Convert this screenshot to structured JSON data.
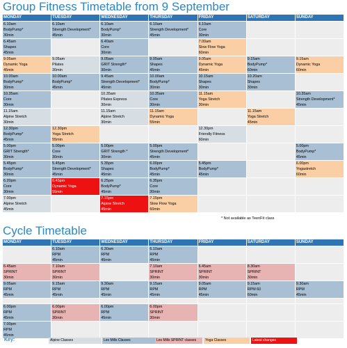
{
  "colors": {
    "alpine": "#d6dde3",
    "lesmills": "#a9bfd3",
    "sprint": "#e8b3b3",
    "yoga": "#fbcfa6",
    "latest": "#ee1111",
    "empty": "#ededed",
    "header": "#2f75b5"
  },
  "gf": {
    "title": "Group Fitness Timetable from 9 September",
    "days": [
      "MONDAY",
      "TUESDAY",
      "WEDNESDAY",
      "THURSDAY",
      "FRIDAY",
      "SATURDAY",
      "SUNDAY"
    ],
    "rows": [
      [
        {
          "t": "6.10am",
          "n": "BodyPump*",
          "d": "30min",
          "c": "lesmills"
        },
        {
          "t": "6.10am",
          "n": "Strength Development*",
          "d": "45min",
          "c": "lesmills"
        },
        {
          "t": "6.10am",
          "n": "BodyPump*",
          "d": "30min",
          "c": "lesmills"
        },
        {
          "t": "6.10am",
          "n": "Strength Development*",
          "d": "45min",
          "c": "lesmills"
        },
        {
          "t": "6.10am",
          "n": "Core",
          "d": "30min",
          "c": "lesmills"
        },
        {
          "c": "empty"
        },
        {
          "c": "empty"
        }
      ],
      [
        {
          "t": "6.45am",
          "n": "Shapes",
          "d": "45min",
          "c": "lesmills"
        },
        {
          "c": "empty"
        },
        {
          "t": "6.40am",
          "n": "Core",
          "d": "30min",
          "c": "lesmills"
        },
        {
          "c": "empty"
        },
        {
          "t": "7.00am",
          "n": "Slow Flow Yoga",
          "d": "60min",
          "c": "yoga"
        },
        {
          "c": "empty"
        },
        {
          "c": "empty"
        }
      ],
      [
        {
          "t": "9.05am",
          "n": "Dynamic Yoga",
          "d": "45min",
          "c": "yoga"
        },
        {
          "t": "9.05am",
          "n": "Pilates",
          "d": "30min",
          "c": "alpine"
        },
        {
          "t": "9.05am",
          "n": "GRIT Strength*",
          "d": "30min",
          "c": "lesmills"
        },
        {
          "t": "9.05am",
          "n": "Shapes",
          "d": "45min",
          "c": "lesmills"
        },
        {
          "t": "9.05am",
          "n": "Dynamic Yoga",
          "d": "45min",
          "c": "yoga"
        },
        {
          "t": "9.15am",
          "n": "BodyPump*",
          "d": "60min",
          "c": "lesmills"
        },
        {
          "t": "9.15am",
          "n": "Dynamic Yoga",
          "d": "60min",
          "c": "yoga"
        }
      ],
      [
        {
          "t": "10.00am",
          "n": "BodyPump*",
          "d": "30min",
          "c": "lesmills"
        },
        {
          "t": "10.00am",
          "n": "BodyPump*",
          "d": "45min",
          "c": "lesmills"
        },
        {
          "t": "9.45am",
          "n": "Strength Development*",
          "d": "45min",
          "c": "lesmills"
        },
        {
          "t": "10.00am",
          "n": "BodyPump*",
          "d": "30min",
          "c": "lesmills"
        },
        {
          "t": "10.15am",
          "n": "Shapes",
          "d": "30min",
          "c": "lesmills"
        },
        {
          "t": "10.20am",
          "n": "Shapes",
          "d": "30min",
          "c": "lesmills"
        },
        {
          "c": "empty"
        }
      ],
      [
        {
          "t": "10.35am",
          "n": "Core",
          "d": "30min",
          "c": "lesmills"
        },
        {
          "c": "empty"
        },
        {
          "t": "10.35am",
          "n": "Pilates Express",
          "d": "30min",
          "c": "alpine"
        },
        {
          "t": "10.35am",
          "n": "Core",
          "d": "30min",
          "c": "lesmills"
        },
        {
          "t": "11.15am",
          "n": "Yoga Stretch",
          "d": "30min",
          "c": "yoga"
        },
        {
          "c": "empty"
        },
        {
          "t": "10.35am",
          "n": "Strength Development*",
          "d": "45min",
          "c": "lesmills"
        }
      ],
      [
        {
          "t": "11.15am",
          "n": "Alpine Stretch",
          "d": "30min",
          "c": "alpine"
        },
        {
          "c": "empty"
        },
        {
          "t": "11.15am",
          "n": "Alpine Stretch",
          "d": "30min",
          "c": "alpine"
        },
        {
          "t": "11.15am",
          "n": "Dynamic Yoga",
          "d": "55min",
          "c": "yoga"
        },
        {
          "c": "empty"
        },
        {
          "t": "11.15am",
          "n": "Yoga Stretch",
          "d": "45min",
          "c": "yoga"
        },
        {
          "c": "empty"
        }
      ],
      [
        {
          "t": "12.30pm",
          "n": "BodyPump*",
          "d": "45min",
          "c": "lesmills"
        },
        {
          "t": "12.30pm",
          "n": "Yoga Stretch",
          "d": "55min",
          "c": "yoga"
        },
        {
          "c": "empty"
        },
        {
          "c": "empty"
        },
        {
          "t": "12.30pm",
          "n": "Friendly Fitness",
          "d": "60min",
          "c": "alpine"
        },
        {
          "c": "empty"
        },
        {
          "c": "empty"
        }
      ],
      [
        {
          "t": "5.00pm",
          "n": "GRIT Strength*",
          "d": "30min",
          "c": "lesmills"
        },
        {
          "t": "5.00pm",
          "n": "Core",
          "d": "30min",
          "c": "lesmills"
        },
        {
          "t": "5.00pm",
          "n": "GRIT Strength  *",
          "d": "30min",
          "c": "lesmills"
        },
        {
          "t": "5.00pm",
          "n": "Strength Development*",
          "d": "45min",
          "c": "lesmills"
        },
        {
          "c": "empty"
        },
        {
          "c": "empty"
        },
        {
          "t": "5.00pm",
          "n": "BodyPump*",
          "d": "45min",
          "c": "lesmills"
        }
      ],
      [
        {
          "t": "5.45pm",
          "n": "BodyPump*",
          "d": "30min",
          "c": "lesmills"
        },
        {
          "t": "5.45pm",
          "n": "Strength Development*",
          "d": "45min",
          "c": "lesmills"
        },
        {
          "t": "5.35pm",
          "n": "Shapes",
          "d": "45min",
          "c": "lesmills"
        },
        {
          "t": "6.00pm",
          "n": "BodyPump*",
          "d": "45min",
          "c": "lesmills"
        },
        {
          "t": "5.45pm",
          "n": "BodyPump*",
          "d": "45min",
          "c": "lesmills"
        },
        {
          "c": "empty"
        },
        {
          "t": "6.00pm",
          "n": "Yogastretch",
          "d": "60min",
          "c": "yoga"
        }
      ],
      [
        {
          "t": "6.20pm",
          "n": "Core",
          "d": "30min",
          "c": "lesmills"
        },
        {
          "t": "6.45pm",
          "n": "Dynamic Yoga",
          "d": "55min",
          "c": "latest"
        },
        {
          "t": "6.25pm",
          "n": "BodyPump*",
          "d": "45min",
          "c": "lesmills"
        },
        {
          "t": "6.35pm",
          "n": "Core",
          "d": "30min",
          "c": "lesmills"
        },
        {
          "c": "empty"
        },
        {
          "c": "empty"
        },
        {
          "c": "empty"
        }
      ],
      [
        {
          "t": "7.00pm",
          "n": "Alpine Stretch",
          "d": "45min",
          "c": "alpine"
        },
        {
          "c": "empty"
        },
        {
          "t": "7.15pm",
          "n": "Alpine Stretch",
          "d": "45min",
          "c": "latest"
        },
        {
          "t": "7.15pm",
          "n": "Slow Flow Yoga",
          "d": "60min",
          "c": "yoga"
        },
        {
          "c": "empty"
        },
        {
          "c": "empty"
        },
        {
          "c": "empty"
        }
      ]
    ],
    "note": "* Not available as TeenFit class"
  },
  "cy": {
    "title": "Cycle Timetable",
    "days": [
      "MONDAY",
      "TUESDAY",
      "WEDNESDAY",
      "THURSDAY",
      "FRIDAY",
      "SATURDAY",
      "SUNDAY"
    ],
    "rows": [
      [
        {
          "c": "empty"
        },
        {
          "t": "6.10am",
          "n": "RPM",
          "d": "45min",
          "c": "lesmills"
        },
        {
          "t": "6.30am",
          "n": "RPM",
          "d": "45min",
          "c": "lesmills"
        },
        {
          "t": "6.10am",
          "n": "RPM",
          "d": "45min",
          "c": "lesmills"
        },
        {
          "c": "empty"
        },
        {
          "c": "empty"
        },
        {
          "c": "empty"
        }
      ],
      [
        {
          "t": "6.45am",
          "n": "SPRINT",
          "d": "30min",
          "c": "sprint"
        },
        {
          "t": "7.10am",
          "n": "SPRINT",
          "d": "30min",
          "c": "sprint"
        },
        {
          "c": "empty"
        },
        {
          "t": "7.10am",
          "n": "SPRINT",
          "d": "30min",
          "c": "sprint"
        },
        {
          "t": "6.45am",
          "n": "SPRINT",
          "d": "30min",
          "c": "sprint"
        },
        {
          "t": "8.30am",
          "n": "SPRINT",
          "d": "30min",
          "c": "sprint"
        },
        {
          "c": "empty"
        }
      ],
      [
        {
          "t": "9.05am",
          "n": "RPM",
          "d": "45min",
          "c": "lesmills"
        },
        {
          "t": "9.15am",
          "n": "RPM",
          "d": "45min",
          "c": "lesmills"
        },
        {
          "t": "9.30am",
          "n": "RPM",
          "d": "45min",
          "c": "lesmills"
        },
        {
          "t": "9.15am",
          "n": "RPM",
          "d": "45min",
          "c": "lesmills"
        },
        {
          "t": "9.05am",
          "n": "RPM",
          "d": "45min",
          "c": "lesmills"
        },
        {
          "t": "9.15am",
          "n": "RPM 60",
          "d": "60min",
          "c": "lesmills"
        },
        {
          "t": "9.30am",
          "n": "RPM",
          "d": "45min",
          "c": "lesmills"
        }
      ],
      [
        {
          "c": "empty"
        },
        {
          "c": "empty"
        },
        {
          "c": "empty"
        },
        {
          "c": "empty"
        },
        {
          "c": "empty"
        },
        {
          "c": "empty"
        },
        {
          "c": "empty"
        }
      ],
      [
        {
          "t": "6.00pm",
          "n": "RPM",
          "d": "45min",
          "c": "lesmills"
        },
        {
          "t": "6.00pm",
          "n": "SPRINT",
          "d": "30min",
          "c": "sprint"
        },
        {
          "t": "6.00pm",
          "n": "RPM",
          "d": "45min",
          "c": "lesmills"
        },
        {
          "t": "6.00pm",
          "n": "SPRINT",
          "d": "30min",
          "c": "sprint"
        },
        {
          "c": "empty"
        },
        {
          "c": "empty"
        },
        {
          "c": "empty"
        }
      ],
      [
        {
          "t": "7.00pm",
          "n": "RPM",
          "d": "45min",
          "c": "lesmills"
        },
        {
          "c": "empty"
        },
        {
          "c": "empty"
        },
        {
          "c": "empty"
        },
        {
          "c": "empty"
        },
        {
          "c": "empty"
        },
        {
          "c": "empty"
        }
      ]
    ]
  },
  "key": {
    "label": "Key:",
    "items": [
      {
        "text": "Alpine Classes",
        "c": "alpine"
      },
      {
        "text": "Les Mills Classes",
        "c": "lesmills"
      },
      {
        "text": "Les Mills SPRINT classes",
        "c": "sprint"
      },
      {
        "text": "Yoga Classes",
        "c": "yoga"
      },
      {
        "text": "Latest changes",
        "c": "latest"
      }
    ]
  }
}
